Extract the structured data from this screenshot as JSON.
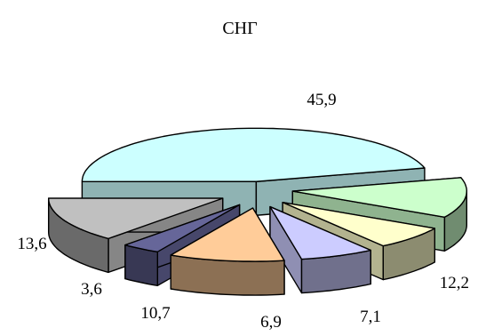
{
  "chart_data": {
    "type": "pie",
    "style": "3d-exploded",
    "title": "СНГ",
    "slices": [
      {
        "value": 45.9,
        "label": "45,9",
        "color": "#ccffff"
      },
      {
        "value": 12.2,
        "label": "12,2",
        "color": "#ccffcc"
      },
      {
        "value": 7.1,
        "label": "7,1",
        "color": "#ffffcc"
      },
      {
        "value": 6.9,
        "label": "6,9",
        "color": "#ccccff"
      },
      {
        "value": 10.7,
        "label": "10,7",
        "color": "#ffcc99"
      },
      {
        "value": 3.6,
        "label": "3,6",
        "color": "#666699"
      },
      {
        "value": 13.6,
        "label": "13,6",
        "color": "#c0c0c0"
      }
    ]
  }
}
